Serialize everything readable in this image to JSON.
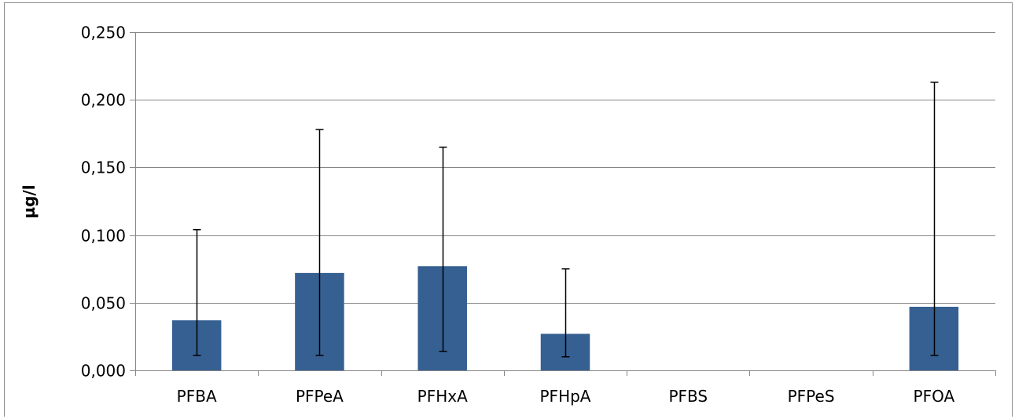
{
  "chart_data": {
    "type": "bar",
    "title": "",
    "xlabel": "",
    "ylabel": "µg/l",
    "ylim": [
      0,
      0.25
    ],
    "yticks": [
      "0,000",
      "0,050",
      "0,100",
      "0,150",
      "0,200",
      "0,250"
    ],
    "ytick_values": [
      0,
      0.05,
      0.1,
      0.15,
      0.2,
      0.25
    ],
    "grid": true,
    "legend": "none",
    "categories": [
      "PFBA",
      "PFPeA",
      "PFHxA",
      "PFHpA",
      "PFBS",
      "PFPeS",
      "PFOA"
    ],
    "series": [
      {
        "values": [
          0.037,
          0.072,
          0.077,
          0.027,
          0.0,
          0.0,
          0.047
        ],
        "error_low": [
          0.011,
          0.011,
          0.014,
          0.01,
          0.0,
          0.0,
          0.011
        ],
        "error_high": [
          0.104,
          0.178,
          0.165,
          0.075,
          0.0,
          0.0,
          0.213
        ]
      }
    ],
    "colors": {
      "bar": "#366092",
      "grid": "#868686",
      "axis": "#868686",
      "error_bar": "#000000"
    }
  }
}
